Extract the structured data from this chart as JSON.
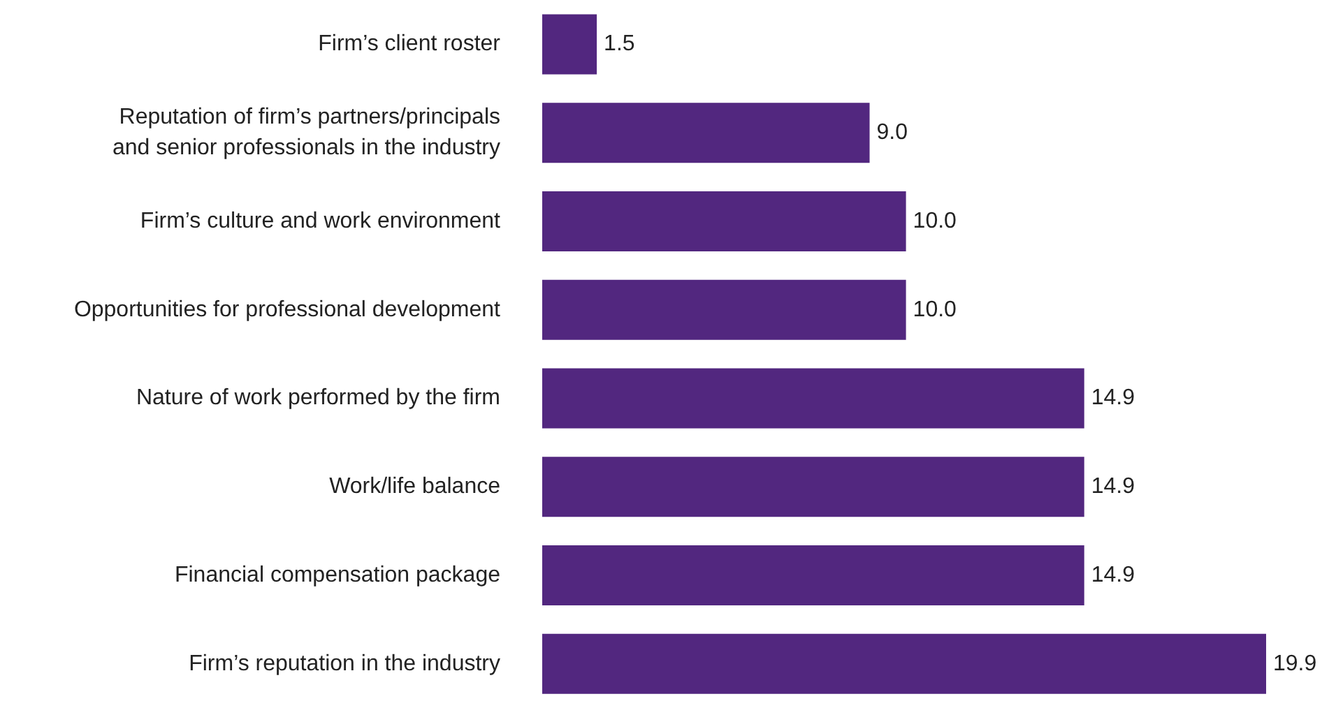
{
  "chart_data": {
    "type": "bar",
    "orientation": "horizontal",
    "categories": [
      "Firm’s client roster",
      "Reputation of firm’s partners/principals\nand senior professionals in the industry",
      "Firm’s culture and work environment",
      "Opportunities for professional development",
      "Nature of work performed by the firm",
      "Work/life balance",
      "Financial compensation package",
      "Firm’s reputation in the industry"
    ],
    "values": [
      1.5,
      9.0,
      10.0,
      10.0,
      14.9,
      14.9,
      14.9,
      19.9
    ],
    "value_labels": [
      "1.5",
      "9.0",
      "10.0",
      "10.0",
      "14.9",
      "14.9",
      "14.9",
      "19.9"
    ],
    "color": "#52277f"
  }
}
